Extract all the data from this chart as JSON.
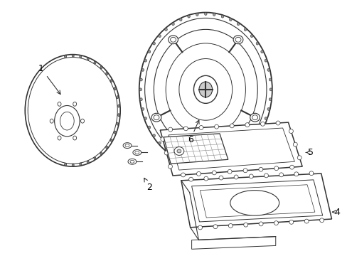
{
  "bg_color": "#ffffff",
  "line_color": "#333333",
  "label_color": "#000000",
  "fig_w": 4.89,
  "fig_h": 3.6,
  "dpi": 100
}
